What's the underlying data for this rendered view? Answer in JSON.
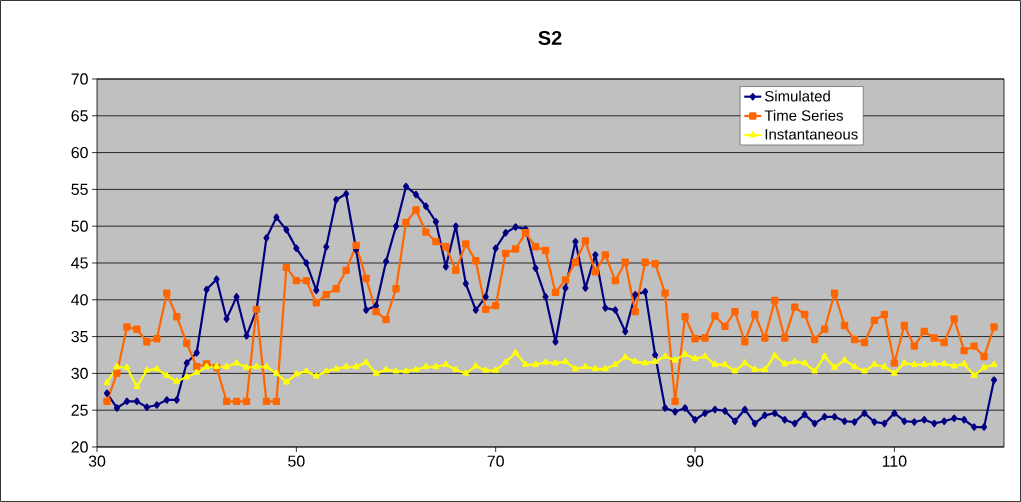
{
  "chart_data": {
    "type": "line",
    "title": "S2",
    "x": [
      31,
      32,
      33,
      34,
      35,
      36,
      37,
      38,
      39,
      40,
      41,
      42,
      43,
      44,
      45,
      46,
      47,
      48,
      49,
      50,
      51,
      52,
      53,
      54,
      55,
      56,
      57,
      58,
      59,
      60,
      61,
      62,
      63,
      64,
      65,
      66,
      67,
      68,
      69,
      70,
      71,
      72,
      73,
      74,
      75,
      76,
      77,
      78,
      79,
      80,
      81,
      82,
      83,
      84,
      85,
      86,
      87,
      88,
      89,
      90,
      91,
      92,
      93,
      94,
      95,
      96,
      97,
      98,
      99,
      100,
      101,
      102,
      103,
      104,
      105,
      106,
      107,
      108,
      109,
      110,
      111,
      112,
      113,
      114,
      115,
      116,
      117,
      118,
      119,
      120
    ],
    "series": [
      {
        "name": "Simulated",
        "color": "#000080",
        "marker": "diamond",
        "values": [
          27.3,
          25.3,
          26.2,
          26.2,
          25.4,
          25.7,
          26.4,
          26.4,
          31.4,
          32.8,
          41.4,
          42.8,
          37.4,
          40.4,
          35.1,
          38.6,
          48.4,
          51.2,
          49.5,
          47.0,
          45.0,
          41.3,
          47.2,
          53.6,
          54.4,
          46.8,
          38.6,
          39.2,
          45.2,
          50.0,
          55.4,
          54.3,
          52.7,
          50.6,
          44.5,
          50.0,
          42.2,
          38.6,
          40.4,
          47.0,
          49.1,
          49.9,
          49.6,
          44.3,
          40.4,
          34.3,
          41.6,
          47.9,
          41.6,
          46.1,
          38.9,
          38.6,
          35.7,
          40.7,
          41.1,
          32.5,
          25.3,
          24.8,
          25.3,
          23.7,
          24.6,
          25.1,
          24.9,
          23.5,
          25.1,
          23.2,
          24.3,
          24.6,
          23.7,
          23.2,
          24.4,
          23.2,
          24.1,
          24.1,
          23.5,
          23.4,
          24.6,
          23.4,
          23.2,
          24.6,
          23.5,
          23.4,
          23.7,
          23.2,
          23.5,
          23.9,
          23.7,
          22.7,
          22.7,
          29.1
        ]
      },
      {
        "name": "Time Series",
        "color": "#ff6600",
        "marker": "square",
        "values": [
          26.2,
          30.0,
          36.3,
          36.0,
          34.3,
          34.7,
          40.9,
          37.7,
          34.1,
          30.9,
          31.3,
          30.8,
          26.2,
          26.2,
          26.2,
          38.7,
          26.2,
          26.2,
          44.4,
          42.6,
          42.6,
          39.6,
          40.7,
          41.5,
          44.0,
          47.4,
          42.9,
          38.4,
          37.3,
          41.5,
          50.5,
          52.2,
          49.2,
          47.9,
          47.2,
          44.0,
          47.6,
          45.3,
          38.7,
          39.2,
          46.3,
          46.9,
          49.1,
          47.2,
          46.7,
          41.0,
          42.7,
          45.1,
          48.0,
          43.8,
          46.1,
          42.6,
          45.1,
          38.4,
          45.1,
          44.9,
          40.9,
          26.2,
          37.7,
          34.7,
          34.8,
          37.8,
          36.4,
          38.4,
          34.3,
          38.0,
          34.8,
          39.9,
          34.8,
          39.0,
          38.0,
          34.6,
          36.0,
          40.9,
          36.5,
          34.6,
          34.2,
          37.2,
          38.0,
          31.4,
          36.5,
          33.7,
          35.7,
          34.8,
          34.2,
          37.4,
          33.1,
          33.7,
          32.3,
          36.3
        ]
      },
      {
        "name": "Instantaneous",
        "color": "#ffff00",
        "marker": "triangle",
        "values": [
          28.7,
          30.9,
          30.8,
          28.2,
          30.4,
          30.6,
          29.7,
          28.9,
          29.5,
          30.1,
          30.9,
          30.9,
          30.9,
          31.4,
          30.8,
          30.9,
          30.9,
          30.0,
          28.8,
          29.9,
          30.3,
          29.6,
          30.3,
          30.6,
          30.9,
          30.9,
          31.5,
          30.0,
          30.5,
          30.3,
          30.3,
          30.5,
          30.9,
          30.9,
          31.2,
          30.5,
          30.0,
          31.0,
          30.4,
          30.4,
          31.5,
          32.8,
          31.2,
          31.2,
          31.5,
          31.4,
          31.6,
          30.6,
          30.9,
          30.6,
          30.6,
          31.2,
          32.2,
          31.6,
          31.4,
          31.6,
          32.3,
          31.8,
          32.6,
          32.0,
          32.3,
          31.2,
          31.2,
          30.3,
          31.4,
          30.5,
          30.5,
          32.4,
          31.3,
          31.6,
          31.4,
          30.3,
          32.3,
          30.8,
          31.8,
          30.9,
          30.3,
          31.2,
          30.9,
          30.0,
          31.4,
          31.2,
          31.2,
          31.3,
          31.3,
          31.0,
          31.3,
          29.7,
          30.8,
          31.2
        ]
      }
    ],
    "xlim": [
      30,
      121
    ],
    "xticks": [
      30,
      50,
      70,
      90,
      110
    ],
    "ylim": [
      20,
      70
    ],
    "yticks": [
      20,
      25,
      30,
      35,
      40,
      45,
      50,
      55,
      60,
      65,
      70
    ],
    "grid": "y",
    "legend": "top right",
    "line_style": "solid"
  }
}
